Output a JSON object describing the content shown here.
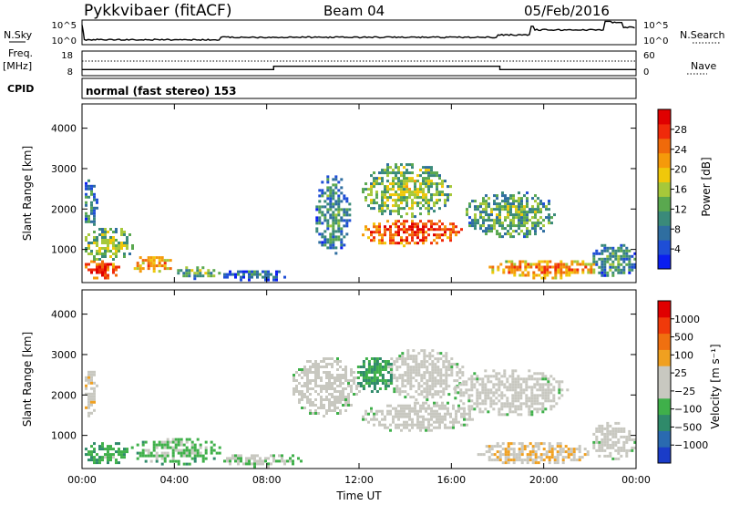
{
  "header": {
    "title": "Pykkvibaer (fitACF)",
    "beam": "Beam 04",
    "date": "05/Feb/2016"
  },
  "noise_panel": {
    "left_label": "N.Sky",
    "left_ticks": [
      "10^5",
      "10^0"
    ],
    "right_label": "N.Search",
    "right_ticks": [
      "10^5",
      "10^0"
    ]
  },
  "freq_panel": {
    "left_label_1": "Freq.",
    "left_label_2": "[MHz]",
    "left_ticks": [
      "18",
      "8"
    ],
    "right_label": "Nave",
    "right_ticks": [
      "60",
      "0"
    ]
  },
  "cpid": {
    "label": "CPID",
    "text": "normal (fast stereo) 153"
  },
  "power_panel": {
    "ylabel": "Slant Range [km]",
    "yticks": [
      "4000",
      "3000",
      "2000",
      "1000"
    ],
    "colorbar_label": "Power [dB]",
    "colorbar_ticks": [
      "28",
      "24",
      "20",
      "16",
      "12",
      "8",
      "4"
    ],
    "colors": [
      "#0a1ef0",
      "#1e4ed6",
      "#2f6ea0",
      "#3a8a7a",
      "#5aa84f",
      "#a6c83a",
      "#f0c80a",
      "#f59a0a",
      "#f06a0a",
      "#f02a0a",
      "#e00000"
    ]
  },
  "velocity_panel": {
    "ylabel": "Slant Range [km]",
    "yticks": [
      "4000",
      "3000",
      "2000",
      "1000"
    ],
    "colorbar_label": "Velocity [m s⁻¹]",
    "colorbar_ticks": [
      "1000",
      "500",
      "100",
      "25",
      "−25",
      "−100",
      "−500",
      "−1000"
    ],
    "colors": [
      "#1a3cc8",
      "#2a6ab0",
      "#2f8a6a",
      "#3fb04a",
      "#c8c8c0",
      "#c8c8c0",
      "#f0a020",
      "#f07010",
      "#f03a0a",
      "#e00000"
    ]
  },
  "xaxis": {
    "label": "Time UT",
    "ticks": [
      "00:00",
      "04:00",
      "08:00",
      "12:00",
      "16:00",
      "20:00",
      "00:00"
    ]
  },
  "chart_data": [
    {
      "type": "heatmap",
      "title": "Power [dB]",
      "xlabel": "Time UT",
      "ylabel": "Slant Range [km]",
      "xlim": [
        0,
        24
      ],
      "ylim": [
        180,
        4600
      ],
      "zlim": [
        0,
        30
      ],
      "blobs": [
        {
          "t": [
            0.0,
            1.6
          ],
          "r": [
            300,
            800
          ],
          "z": 26
        },
        {
          "t": [
            0.0,
            2.2
          ],
          "r": [
            700,
            1600
          ],
          "z": 15
        },
        {
          "t": [
            0.0,
            0.6
          ],
          "r": [
            1500,
            2800
          ],
          "z": 10
        },
        {
          "t": [
            2.0,
            4.0
          ],
          "r": [
            450,
            900
          ],
          "z": 21
        },
        {
          "t": [
            4.0,
            6.0
          ],
          "r": [
            300,
            650
          ],
          "z": 13
        },
        {
          "t": [
            6.0,
            9.0
          ],
          "r": [
            250,
            550
          ],
          "z": 8
        },
        {
          "t": [
            10.0,
            11.6
          ],
          "r": [
            900,
            2900
          ],
          "z": 10
        },
        {
          "t": [
            12.0,
            16.5
          ],
          "r": [
            1100,
            1800
          ],
          "z": 26
        },
        {
          "t": [
            12.0,
            16.0
          ],
          "r": [
            1800,
            3200
          ],
          "z": 15
        },
        {
          "t": [
            16.5,
            20.5
          ],
          "r": [
            1300,
            2500
          ],
          "z": 13
        },
        {
          "t": [
            17.5,
            22.5
          ],
          "r": [
            300,
            800
          ],
          "z": 22
        },
        {
          "t": [
            22.0,
            24.0
          ],
          "r": [
            300,
            1200
          ],
          "z": 10
        }
      ]
    },
    {
      "type": "heatmap",
      "title": "Velocity [m s⁻¹]",
      "xlabel": "Time UT",
      "ylabel": "Slant Range [km]",
      "xlim": [
        0,
        24
      ],
      "ylim": [
        180,
        4600
      ],
      "zlim": [
        -1000,
        1000
      ],
      "blobs": [
        {
          "t": [
            0.0,
            2.0
          ],
          "r": [
            300,
            900
          ],
          "z": -300
        },
        {
          "t": [
            0.0,
            0.6
          ],
          "r": [
            1500,
            2800
          ],
          "z": 150
        },
        {
          "t": [
            2.0,
            6.0
          ],
          "r": [
            300,
            1000
          ],
          "z": -200
        },
        {
          "t": [
            6.0,
            9.5
          ],
          "r": [
            250,
            600
          ],
          "z": -120
        },
        {
          "t": [
            9.0,
            12.0
          ],
          "r": [
            1500,
            3000
          ],
          "z": 0
        },
        {
          "t": [
            12.0,
            17.0
          ],
          "r": [
            1100,
            1900
          ],
          "z": 0
        },
        {
          "t": [
            13.0,
            16.5
          ],
          "r": [
            1900,
            3200
          ],
          "z": 0
        },
        {
          "t": [
            11.8,
            13.5
          ],
          "r": [
            2100,
            3000
          ],
          "z": -350
        },
        {
          "t": [
            16.0,
            21.0
          ],
          "r": [
            1500,
            2700
          ],
          "z": 0
        },
        {
          "t": [
            17.0,
            22.0
          ],
          "r": [
            300,
            900
          ],
          "z": 200
        },
        {
          "t": [
            22.0,
            24.0
          ],
          "r": [
            400,
            1400
          ],
          "z": 0
        }
      ]
    },
    {
      "type": "line",
      "title": "N.Sky",
      "x": [
        0,
        6,
        12,
        18,
        19.5,
        22.6,
        23.2,
        24
      ],
      "y": [
        0.2,
        0.3,
        0.3,
        0.4,
        0.6,
        0.9,
        0.7,
        0.4
      ]
    },
    {
      "type": "line",
      "title": "Freq.",
      "x": [
        0,
        8.3,
        8.3,
        18.1,
        18.1,
        24
      ],
      "y": [
        10.5,
        10.5,
        11.8,
        11.8,
        10.5,
        10.5
      ]
    }
  ]
}
